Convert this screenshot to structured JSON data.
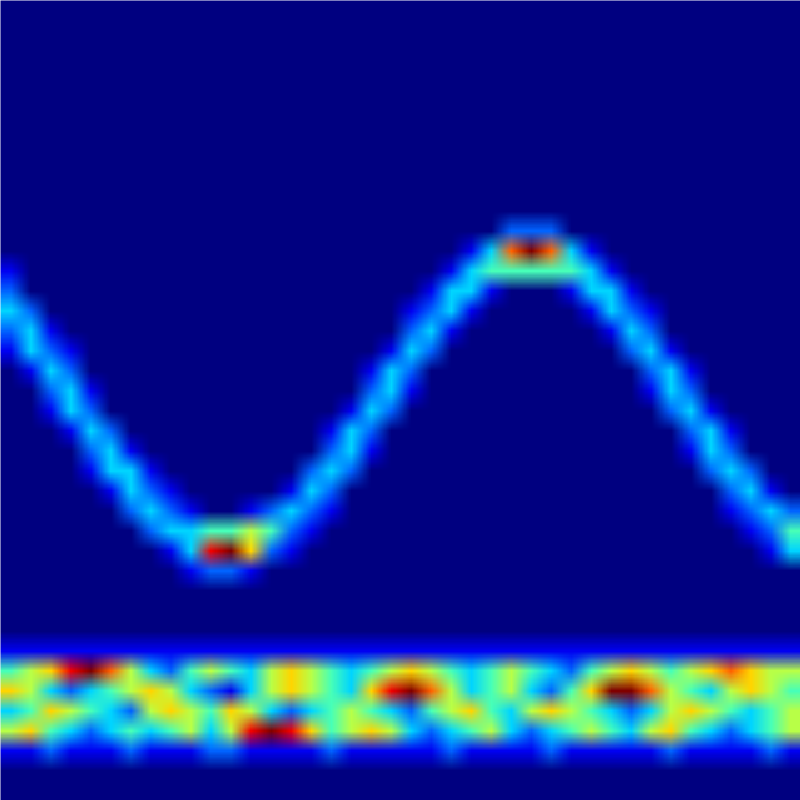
{
  "chart_data": {
    "type": "heatmap",
    "tick_labels": false,
    "xlim": [
      0,
      40
    ],
    "ylim": [
      0,
      40
    ],
    "zlim": [
      0,
      9
    ],
    "cells": [
      [
        0,
        0,
        0,
        0,
        0,
        0,
        0,
        0,
        0,
        0,
        0,
        0,
        0,
        0,
        0,
        0,
        0,
        0,
        0,
        0,
        0,
        0,
        0,
        0,
        0,
        0,
        0,
        0,
        0,
        0,
        0,
        0,
        0,
        0,
        0,
        0,
        0,
        0,
        0,
        0
      ],
      [
        0,
        0,
        0,
        0,
        0,
        0,
        0,
        0,
        0,
        0,
        0,
        0,
        0,
        0,
        0,
        0,
        0,
        0,
        0,
        0,
        0,
        0,
        0,
        0,
        0,
        0,
        0,
        0,
        0,
        0,
        0,
        0,
        0,
        0,
        0,
        0,
        0,
        0,
        0,
        0
      ],
      [
        0,
        0,
        0,
        0,
        0,
        0,
        0,
        0,
        0,
        0,
        0,
        0,
        0,
        0,
        0,
        0,
        0,
        0,
        0,
        0,
        0,
        0,
        0,
        0,
        0,
        0,
        0,
        0,
        0,
        0,
        0,
        0,
        0,
        0,
        0,
        0,
        0,
        0,
        0,
        0
      ],
      [
        0,
        0,
        0,
        0,
        0,
        0,
        0,
        0,
        0,
        0,
        0,
        0,
        0,
        0,
        0,
        0,
        0,
        0,
        0,
        0,
        0,
        0,
        0,
        0,
        0,
        0,
        0,
        0,
        0,
        0,
        0,
        0,
        0,
        0,
        0,
        0,
        0,
        0,
        0,
        0
      ],
      [
        0,
        0,
        0,
        0,
        0,
        0,
        0,
        0,
        0,
        0,
        0,
        0,
        0,
        0,
        0,
        0,
        0,
        0,
        0,
        0,
        0,
        0,
        0,
        0,
        0,
        0,
        0,
        0,
        0,
        0,
        0,
        0,
        0,
        0,
        0,
        0,
        0,
        0,
        0,
        0
      ],
      [
        0,
        0,
        0,
        0,
        0,
        0,
        0,
        0,
        0,
        0,
        0,
        0,
        0,
        0,
        0,
        0,
        0,
        0,
        0,
        0,
        0,
        0,
        0,
        0,
        0,
        0,
        0,
        0,
        0,
        0,
        0,
        0,
        0,
        0,
        0,
        0,
        0,
        0,
        0,
        0
      ],
      [
        0,
        0,
        0,
        0,
        0,
        0,
        0,
        0,
        0,
        0,
        0,
        0,
        0,
        0,
        0,
        0,
        0,
        0,
        0,
        0,
        0,
        0,
        0,
        0,
        0,
        0,
        0,
        0,
        0,
        0,
        0,
        0,
        0,
        0,
        0,
        0,
        0,
        0,
        0,
        0
      ],
      [
        0,
        0,
        0,
        0,
        0,
        0,
        0,
        0,
        0,
        0,
        0,
        0,
        0,
        0,
        0,
        0,
        0,
        0,
        0,
        0,
        0,
        0,
        0,
        0,
        0,
        0,
        0,
        0,
        0,
        0,
        0,
        0,
        0,
        0,
        0,
        0,
        0,
        0,
        0,
        0
      ],
      [
        0,
        0,
        0,
        0,
        0,
        0,
        0,
        0,
        0,
        0,
        0,
        0,
        0,
        0,
        0,
        0,
        0,
        0,
        0,
        0,
        0,
        0,
        0,
        0,
        0,
        0,
        0,
        0,
        0,
        0,
        0,
        0,
        0,
        0,
        0,
        0,
        0,
        0,
        0,
        0
      ],
      [
        0,
        0,
        0,
        0,
        0,
        0,
        0,
        0,
        0,
        0,
        0,
        0,
        0,
        0,
        0,
        0,
        0,
        0,
        0,
        0,
        0,
        0,
        0,
        0,
        0,
        0,
        0,
        0,
        0,
        0,
        0,
        0,
        0,
        0,
        0,
        0,
        0,
        0,
        0,
        0
      ],
      [
        0,
        0,
        0,
        0,
        0,
        0,
        0,
        0,
        0,
        0,
        0,
        0,
        0,
        0,
        0,
        0,
        0,
        0,
        0,
        0,
        0,
        0,
        0,
        0,
        0,
        0,
        0,
        0,
        0,
        0,
        0,
        0,
        0,
        0,
        0,
        0,
        0,
        0,
        0,
        0
      ],
      [
        0,
        0,
        0,
        0,
        0,
        0,
        0,
        0,
        0,
        0,
        0,
        0,
        0,
        0,
        0,
        0,
        0,
        0,
        0,
        0,
        0,
        0,
        0,
        0,
        0,
        2,
        2,
        2,
        0,
        0,
        0,
        0,
        0,
        0,
        0,
        0,
        0,
        0,
        0,
        0
      ],
      [
        0,
        0,
        0,
        0,
        0,
        0,
        0,
        0,
        0,
        0,
        0,
        0,
        0,
        0,
        0,
        0,
        0,
        0,
        0,
        0,
        0,
        0,
        0,
        1,
        3,
        7,
        9,
        7,
        3,
        1,
        0,
        0,
        0,
        0,
        0,
        0,
        0,
        0,
        0,
        0
      ],
      [
        1,
        0,
        0,
        0,
        0,
        0,
        0,
        0,
        0,
        0,
        0,
        0,
        0,
        0,
        0,
        0,
        0,
        0,
        0,
        0,
        0,
        0,
        1,
        3,
        4,
        4,
        4,
        4,
        4,
        3,
        1,
        0,
        0,
        0,
        0,
        0,
        0,
        0,
        0,
        0
      ],
      [
        2,
        0,
        0,
        0,
        0,
        0,
        0,
        0,
        0,
        0,
        0,
        0,
        0,
        0,
        0,
        0,
        0,
        0,
        0,
        0,
        0,
        1,
        3,
        3,
        1,
        0,
        0,
        0,
        1,
        3,
        3,
        1,
        0,
        0,
        0,
        0,
        0,
        0,
        0,
        0
      ],
      [
        3,
        2,
        0,
        0,
        0,
        0,
        0,
        0,
        0,
        0,
        0,
        0,
        0,
        0,
        0,
        0,
        0,
        0,
        0,
        0,
        1,
        2,
        3,
        1,
        0,
        0,
        0,
        0,
        0,
        1,
        3,
        2,
        1,
        0,
        0,
        0,
        0,
        0,
        0,
        0
      ],
      [
        2,
        3,
        1,
        0,
        0,
        0,
        0,
        0,
        0,
        0,
        0,
        0,
        0,
        0,
        0,
        0,
        0,
        0,
        0,
        0,
        2,
        3,
        1,
        0,
        0,
        0,
        0,
        0,
        0,
        0,
        1,
        3,
        2,
        0,
        0,
        0,
        0,
        0,
        0,
        0
      ],
      [
        1,
        3,
        2,
        1,
        0,
        0,
        0,
        0,
        0,
        0,
        0,
        0,
        0,
        0,
        0,
        0,
        0,
        0,
        0,
        1,
        3,
        2,
        0,
        0,
        0,
        0,
        0,
        0,
        0,
        0,
        0,
        2,
        3,
        1,
        0,
        0,
        0,
        0,
        0,
        0
      ],
      [
        0,
        1,
        3,
        2,
        0,
        0,
        0,
        0,
        0,
        0,
        0,
        0,
        0,
        0,
        0,
        0,
        0,
        0,
        1,
        3,
        2,
        0,
        0,
        0,
        0,
        0,
        0,
        0,
        0,
        0,
        0,
        0,
        2,
        3,
        1,
        0,
        0,
        0,
        0,
        0
      ],
      [
        0,
        0,
        2,
        3,
        1,
        0,
        0,
        0,
        0,
        0,
        0,
        0,
        0,
        0,
        0,
        0,
        0,
        0,
        2,
        3,
        1,
        0,
        0,
        0,
        0,
        0,
        0,
        0,
        0,
        0,
        0,
        0,
        1,
        3,
        2,
        0,
        0,
        0,
        0,
        0
      ],
      [
        0,
        0,
        1,
        3,
        2,
        0,
        0,
        0,
        0,
        0,
        0,
        0,
        0,
        0,
        0,
        0,
        0,
        1,
        3,
        2,
        0,
        0,
        0,
        0,
        0,
        0,
        0,
        0,
        0,
        0,
        0,
        0,
        0,
        2,
        3,
        1,
        0,
        0,
        0,
        0
      ],
      [
        0,
        0,
        0,
        1,
        3,
        2,
        0,
        0,
        0,
        0,
        0,
        0,
        0,
        0,
        0,
        0,
        1,
        3,
        2,
        0,
        0,
        0,
        0,
        0,
        0,
        0,
        0,
        0,
        0,
        0,
        0,
        0,
        0,
        0,
        2,
        3,
        1,
        0,
        0,
        0
      ],
      [
        0,
        0,
        0,
        0,
        2,
        3,
        1,
        0,
        0,
        0,
        0,
        0,
        0,
        0,
        0,
        0,
        2,
        3,
        1,
        0,
        0,
        0,
        0,
        0,
        0,
        0,
        0,
        0,
        0,
        0,
        0,
        0,
        0,
        0,
        1,
        3,
        2,
        0,
        0,
        0
      ],
      [
        0,
        0,
        0,
        0,
        1,
        3,
        3,
        1,
        0,
        0,
        0,
        0,
        0,
        0,
        0,
        2,
        3,
        2,
        0,
        0,
        0,
        0,
        0,
        0,
        0,
        0,
        0,
        0,
        0,
        0,
        0,
        0,
        0,
        0,
        0,
        2,
        3,
        2,
        0,
        0
      ],
      [
        0,
        0,
        0,
        0,
        0,
        1,
        3,
        2,
        1,
        0,
        0,
        0,
        0,
        0,
        1,
        3,
        2,
        0,
        0,
        0,
        0,
        0,
        0,
        0,
        0,
        0,
        0,
        0,
        0,
        0,
        0,
        0,
        0,
        0,
        0,
        0,
        2,
        3,
        1,
        0
      ],
      [
        0,
        0,
        0,
        0,
        0,
        0,
        2,
        3,
        2,
        1,
        0,
        0,
        1,
        2,
        3,
        2,
        1,
        0,
        0,
        0,
        0,
        0,
        0,
        0,
        0,
        0,
        0,
        0,
        0,
        0,
        0,
        0,
        0,
        0,
        0,
        0,
        1,
        2,
        3,
        2
      ],
      [
        0,
        0,
        0,
        0,
        0,
        0,
        0,
        2,
        3,
        3,
        4,
        4,
        5,
        4,
        2,
        1,
        0,
        0,
        0,
        0,
        0,
        0,
        0,
        0,
        0,
        0,
        0,
        0,
        0,
        0,
        0,
        0,
        0,
        0,
        0,
        0,
        0,
        1,
        2,
        4
      ],
      [
        0,
        0,
        0,
        0,
        0,
        0,
        0,
        0,
        1,
        3,
        8,
        9,
        6,
        2,
        1,
        0,
        0,
        0,
        0,
        0,
        0,
        0,
        0,
        0,
        0,
        0,
        0,
        0,
        0,
        0,
        0,
        0,
        0,
        0,
        0,
        0,
        0,
        0,
        1,
        3
      ],
      [
        0,
        0,
        0,
        0,
        0,
        0,
        0,
        0,
        0,
        1,
        2,
        2,
        1,
        0,
        0,
        0,
        0,
        0,
        0,
        0,
        0,
        0,
        0,
        0,
        0,
        0,
        0,
        0,
        0,
        0,
        0,
        0,
        0,
        0,
        0,
        0,
        0,
        0,
        0,
        0
      ],
      [
        0,
        0,
        0,
        0,
        0,
        0,
        0,
        0,
        0,
        0,
        0,
        0,
        0,
        0,
        0,
        0,
        0,
        0,
        0,
        0,
        0,
        0,
        0,
        0,
        0,
        0,
        0,
        0,
        0,
        0,
        0,
        0,
        0,
        0,
        0,
        0,
        0,
        0,
        0,
        0
      ],
      [
        0,
        0,
        0,
        0,
        0,
        0,
        0,
        0,
        0,
        0,
        0,
        0,
        0,
        0,
        0,
        0,
        0,
        0,
        0,
        0,
        0,
        0,
        0,
        0,
        0,
        0,
        0,
        0,
        0,
        0,
        0,
        0,
        0,
        0,
        0,
        0,
        0,
        0,
        0,
        0
      ],
      [
        0,
        0,
        0,
        0,
        0,
        0,
        0,
        0,
        0,
        0,
        0,
        0,
        0,
        0,
        0,
        0,
        0,
        0,
        0,
        0,
        0,
        0,
        0,
        0,
        0,
        0,
        0,
        0,
        0,
        0,
        0,
        0,
        0,
        0,
        0,
        0,
        0,
        0,
        0,
        0
      ],
      [
        1,
        1,
        1,
        1,
        1,
        1,
        1,
        1,
        1,
        1,
        1,
        1,
        1,
        1,
        1,
        1,
        1,
        1,
        1,
        1,
        1,
        1,
        1,
        1,
        1,
        1,
        1,
        1,
        1,
        1,
        1,
        1,
        1,
        1,
        1,
        1,
        1,
        1,
        1,
        1
      ],
      [
        4,
        5,
        6,
        8,
        9,
        7,
        5,
        3,
        2,
        4,
        5,
        4,
        3,
        5,
        6,
        5,
        4,
        3,
        4,
        5,
        6,
        5,
        4,
        3,
        4,
        5,
        4,
        3,
        2,
        4,
        5,
        6,
        5,
        4,
        5,
        6,
        7,
        6,
        5,
        5
      ],
      [
        6,
        5,
        3,
        2,
        3,
        4,
        5,
        6,
        5,
        3,
        2,
        1,
        3,
        5,
        6,
        5,
        4,
        3,
        6,
        8,
        9,
        7,
        5,
        3,
        4,
        5,
        3,
        2,
        4,
        6,
        9,
        9,
        7,
        5,
        4,
        3,
        5,
        6,
        5,
        4
      ],
      [
        3,
        4,
        6,
        5,
        4,
        3,
        2,
        5,
        6,
        5,
        4,
        6,
        5,
        3,
        2,
        3,
        4,
        5,
        4,
        3,
        2,
        4,
        5,
        6,
        4,
        3,
        5,
        6,
        5,
        4,
        3,
        2,
        3,
        5,
        6,
        5,
        4,
        3,
        4,
        5
      ],
      [
        5,
        6,
        4,
        3,
        2,
        3,
        4,
        3,
        4,
        5,
        3,
        5,
        8,
        9,
        8,
        6,
        4,
        5,
        6,
        5,
        3,
        2,
        3,
        4,
        5,
        3,
        2,
        3,
        4,
        5,
        4,
        3,
        5,
        6,
        4,
        3,
        2,
        3,
        4,
        5
      ],
      [
        1,
        1,
        2,
        1,
        1,
        1,
        2,
        1,
        1,
        1,
        2,
        2,
        1,
        1,
        1,
        1,
        2,
        1,
        1,
        1,
        1,
        1,
        2,
        1,
        1,
        1,
        1,
        2,
        1,
        1,
        1,
        1,
        1,
        2,
        1,
        1,
        1,
        1,
        2,
        1
      ],
      [
        0,
        0,
        0,
        0,
        0,
        0,
        0,
        0,
        0,
        0,
        0,
        0,
        0,
        0,
        0,
        0,
        0,
        0,
        0,
        0,
        0,
        0,
        0,
        0,
        0,
        0,
        0,
        0,
        0,
        0,
        0,
        0,
        0,
        0,
        0,
        0,
        0,
        0,
        0,
        0
      ],
      [
        0,
        0,
        0,
        0,
        0,
        0,
        0,
        0,
        0,
        0,
        0,
        0,
        0,
        0,
        0,
        0,
        0,
        0,
        0,
        0,
        0,
        0,
        0,
        0,
        0,
        0,
        0,
        0,
        0,
        0,
        0,
        0,
        0,
        0,
        0,
        0,
        0,
        0,
        0,
        0
      ]
    ]
  }
}
